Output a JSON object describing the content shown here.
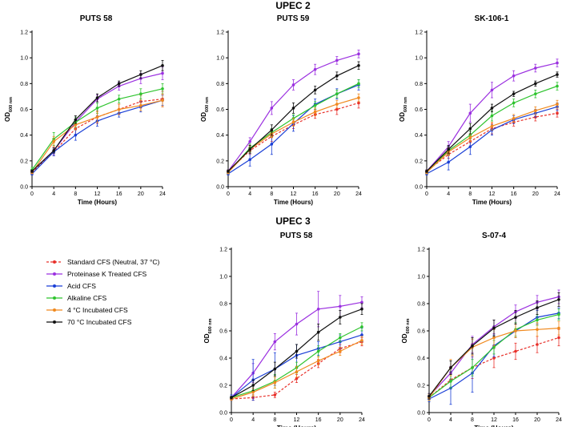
{
  "group_titles": [
    "UPEC 2",
    "UPEC 3"
  ],
  "legend": [
    {
      "name": "Standard CFS (Neutral, 37 °C)",
      "color": "#e8302a",
      "dash": true
    },
    {
      "name": "Proteinase K Treated CFS",
      "color": "#9b30e0",
      "dash": false
    },
    {
      "name": "Acid CFS",
      "color": "#1a3fd6",
      "dash": false
    },
    {
      "name": "Alkaline CFS",
      "color": "#2fc42f",
      "dash": false
    },
    {
      "name": "4 °C Incubated CFS",
      "color": "#f0891e",
      "dash": false
    },
    {
      "name": "70 °C Incubated CFS",
      "color": "#111111",
      "dash": false
    }
  ],
  "chart_data": [
    {
      "type": "line",
      "group": "UPEC 2",
      "title": "PUTS 58",
      "xlabel": "Time (Hours)",
      "ylabel_main": "OD",
      "ylabel_sub": "600 nm",
      "x": [
        0,
        4,
        8,
        12,
        16,
        20,
        24
      ],
      "xlim": [
        0,
        24
      ],
      "ylim": [
        0,
        1.2
      ],
      "xticks": [
        "0",
        "4",
        "8",
        "12",
        "16",
        "20",
        "24"
      ],
      "yticks": [
        "0.0",
        "0.2",
        "0.4",
        "0.6",
        "0.8",
        "1.0",
        "1.2"
      ],
      "series": [
        {
          "name": "Standard CFS (Neutral, 37 °C)",
          "values": [
            0.11,
            0.27,
            0.45,
            0.54,
            0.6,
            0.66,
            0.68
          ],
          "errors": [
            0.01,
            0.03,
            0.05,
            0.05,
            0.04,
            0.05,
            0.06
          ]
        },
        {
          "name": "Proteinase K Treated CFS",
          "values": [
            0.12,
            0.28,
            0.5,
            0.68,
            0.78,
            0.84,
            0.88
          ],
          "errors": [
            0.01,
            0.03,
            0.04,
            0.03,
            0.03,
            0.04,
            0.05
          ]
        },
        {
          "name": "Acid CFS",
          "values": [
            0.1,
            0.27,
            0.4,
            0.51,
            0.57,
            0.62,
            0.67
          ],
          "errors": [
            0.01,
            0.03,
            0.04,
            0.04,
            0.03,
            0.04,
            0.04
          ]
        },
        {
          "name": "Alkaline CFS",
          "values": [
            0.13,
            0.37,
            0.5,
            0.61,
            0.68,
            0.72,
            0.76
          ],
          "errors": [
            0.02,
            0.05,
            0.04,
            0.04,
            0.03,
            0.04,
            0.04
          ]
        },
        {
          "name": "4 °C Incubated CFS",
          "values": [
            0.11,
            0.35,
            0.48,
            0.54,
            0.6,
            0.63,
            0.67
          ],
          "errors": [
            0.01,
            0.04,
            0.04,
            0.04,
            0.04,
            0.04,
            0.05
          ]
        },
        {
          "name": "70 °C Incubated CFS",
          "values": [
            0.12,
            0.28,
            0.52,
            0.69,
            0.8,
            0.87,
            0.94
          ],
          "errors": [
            0.01,
            0.02,
            0.03,
            0.03,
            0.02,
            0.03,
            0.04
          ]
        }
      ]
    },
    {
      "type": "line",
      "group": "UPEC 2",
      "title": "PUTS 59",
      "xlabel": "Time (Hours)",
      "ylabel_main": "OD",
      "ylabel_sub": "600 nm",
      "x": [
        0,
        4,
        8,
        12,
        16,
        20,
        24
      ],
      "xlim": [
        0,
        24
      ],
      "ylim": [
        0,
        1.2
      ],
      "xticks": [
        "0",
        "4",
        "8",
        "12",
        "16",
        "20",
        "24"
      ],
      "yticks": [
        "0.0",
        "0.2",
        "0.4",
        "0.6",
        "0.8",
        "1.0",
        "1.2"
      ],
      "series": [
        {
          "name": "Standard CFS (Neutral, 37 °C)",
          "values": [
            0.12,
            0.28,
            0.39,
            0.48,
            0.56,
            0.6,
            0.65
          ],
          "errors": [
            0.01,
            0.03,
            0.04,
            0.03,
            0.03,
            0.04,
            0.04
          ]
        },
        {
          "name": "Proteinase K Treated CFS",
          "values": [
            0.12,
            0.35,
            0.61,
            0.79,
            0.91,
            0.98,
            1.03
          ],
          "errors": [
            0.01,
            0.03,
            0.05,
            0.04,
            0.04,
            0.03,
            0.03
          ]
        },
        {
          "name": "Acid CFS",
          "values": [
            0.1,
            0.21,
            0.33,
            0.49,
            0.64,
            0.72,
            0.79
          ],
          "errors": [
            0.01,
            0.05,
            0.08,
            0.06,
            0.04,
            0.04,
            0.04
          ]
        },
        {
          "name": "Alkaline CFS",
          "values": [
            0.11,
            0.3,
            0.42,
            0.53,
            0.63,
            0.72,
            0.8
          ],
          "errors": [
            0.01,
            0.03,
            0.03,
            0.03,
            0.03,
            0.03,
            0.03
          ]
        },
        {
          "name": "4 °C Incubated CFS",
          "values": [
            0.11,
            0.29,
            0.41,
            0.5,
            0.58,
            0.64,
            0.69
          ],
          "errors": [
            0.01,
            0.03,
            0.03,
            0.03,
            0.03,
            0.03,
            0.03
          ]
        },
        {
          "name": "70 °C Incubated CFS",
          "values": [
            0.12,
            0.29,
            0.44,
            0.61,
            0.75,
            0.86,
            0.94
          ],
          "errors": [
            0.01,
            0.03,
            0.04,
            0.04,
            0.03,
            0.03,
            0.03
          ]
        }
      ]
    },
    {
      "type": "line",
      "group": "UPEC 2",
      "title": "SK-106-1",
      "xlabel": "Time (Hours)",
      "ylabel_main": "OD",
      "ylabel_sub": "600 nm",
      "x": [
        0,
        4,
        8,
        12,
        16,
        20,
        24
      ],
      "xlim": [
        0,
        24
      ],
      "ylim": [
        0,
        1.2
      ],
      "xticks": [
        "0",
        "4",
        "8",
        "12",
        "16",
        "20",
        "24"
      ],
      "yticks": [
        "0.0",
        "0.2",
        "0.4",
        "0.6",
        "0.8",
        "1.0",
        "1.2"
      ],
      "series": [
        {
          "name": "Standard CFS (Neutral, 37 °C)",
          "values": [
            0.12,
            0.25,
            0.35,
            0.45,
            0.5,
            0.54,
            0.57
          ],
          "errors": [
            0.01,
            0.03,
            0.04,
            0.04,
            0.03,
            0.03,
            0.03
          ]
        },
        {
          "name": "Proteinase K Treated CFS",
          "values": [
            0.12,
            0.31,
            0.57,
            0.75,
            0.86,
            0.92,
            0.96
          ],
          "errors": [
            0.01,
            0.04,
            0.07,
            0.06,
            0.04,
            0.03,
            0.03
          ]
        },
        {
          "name": "Acid CFS",
          "values": [
            0.1,
            0.19,
            0.31,
            0.44,
            0.52,
            0.57,
            0.62
          ],
          "errors": [
            0.01,
            0.06,
            0.06,
            0.04,
            0.03,
            0.03,
            0.03
          ]
        },
        {
          "name": "Alkaline CFS",
          "values": [
            0.11,
            0.28,
            0.4,
            0.55,
            0.65,
            0.72,
            0.78
          ],
          "errors": [
            0.01,
            0.03,
            0.03,
            0.04,
            0.03,
            0.03,
            0.03
          ]
        },
        {
          "name": "4 °C Incubated CFS",
          "values": [
            0.11,
            0.27,
            0.38,
            0.47,
            0.53,
            0.59,
            0.64
          ],
          "errors": [
            0.01,
            0.03,
            0.03,
            0.03,
            0.03,
            0.03,
            0.03
          ]
        },
        {
          "name": "70 °C Incubated CFS",
          "values": [
            0.12,
            0.29,
            0.45,
            0.61,
            0.72,
            0.8,
            0.87
          ],
          "errors": [
            0.01,
            0.03,
            0.04,
            0.03,
            0.02,
            0.02,
            0.02
          ]
        }
      ]
    },
    {
      "type": "line",
      "group": "UPEC 3",
      "title": "PUTS 58",
      "xlabel": "Time (Hours)",
      "ylabel_main": "OD",
      "ylabel_sub": "600 nm",
      "x": [
        0,
        4,
        8,
        12,
        16,
        20,
        24
      ],
      "xlim": [
        0,
        24
      ],
      "ylim": [
        0,
        1.2
      ],
      "xticks": [
        "0",
        "4",
        "8",
        "12",
        "16",
        "20",
        "24"
      ],
      "yticks": [
        "0.0",
        "0.2",
        "0.4",
        "0.6",
        "0.8",
        "1.0",
        "1.2"
      ],
      "series": [
        {
          "name": "Standard CFS (Neutral, 37 °C)",
          "values": [
            0.1,
            0.11,
            0.13,
            0.25,
            0.36,
            0.47,
            0.52
          ],
          "errors": [
            0.01,
            0.02,
            0.02,
            0.03,
            0.03,
            0.03,
            0.03
          ]
        },
        {
          "name": "Proteinase K Treated CFS",
          "values": [
            0.11,
            0.29,
            0.52,
            0.65,
            0.76,
            0.78,
            0.81
          ],
          "errors": [
            0.02,
            0.07,
            0.06,
            0.08,
            0.13,
            0.08,
            0.04
          ]
        },
        {
          "name": "Acid CFS",
          "values": [
            0.11,
            0.24,
            0.32,
            0.42,
            0.47,
            0.52,
            0.57
          ],
          "errors": [
            0.02,
            0.15,
            0.12,
            0.08,
            0.05,
            0.05,
            0.05
          ]
        },
        {
          "name": "Alkaline CFS",
          "values": [
            0.11,
            0.16,
            0.23,
            0.33,
            0.45,
            0.55,
            0.63
          ],
          "errors": [
            0.01,
            0.04,
            0.05,
            0.04,
            0.04,
            0.03,
            0.03
          ]
        },
        {
          "name": "4 °C Incubated CFS",
          "values": [
            0.1,
            0.15,
            0.22,
            0.3,
            0.38,
            0.45,
            0.53
          ],
          "errors": [
            0.01,
            0.03,
            0.04,
            0.04,
            0.03,
            0.03,
            0.03
          ]
        },
        {
          "name": "70 °C Incubated CFS",
          "values": [
            0.11,
            0.2,
            0.32,
            0.45,
            0.59,
            0.7,
            0.76
          ],
          "errors": [
            0.01,
            0.04,
            0.05,
            0.05,
            0.06,
            0.05,
            0.04
          ]
        }
      ]
    },
    {
      "type": "line",
      "group": "UPEC 3",
      "title": "S-07-4",
      "xlabel": "Time (Hours)",
      "ylabel_main": "OD",
      "ylabel_sub": "600 nm",
      "x": [
        0,
        4,
        8,
        12,
        16,
        20,
        24
      ],
      "xlim": [
        0,
        24
      ],
      "ylim": [
        0,
        1.2
      ],
      "xticks": [
        "0",
        "4",
        "8",
        "12",
        "16",
        "20",
        "24"
      ],
      "yticks": [
        "0.0",
        "0.2",
        "0.4",
        "0.6",
        "0.8",
        "1.0",
        "1.2"
      ],
      "series": [
        {
          "name": "Standard CFS (Neutral, 37 °C)",
          "values": [
            0.11,
            0.24,
            0.33,
            0.4,
            0.45,
            0.5,
            0.55
          ],
          "errors": [
            0.02,
            0.06,
            0.08,
            0.07,
            0.06,
            0.06,
            0.06
          ]
        },
        {
          "name": "Proteinase K Treated CFS",
          "values": [
            0.12,
            0.29,
            0.5,
            0.63,
            0.74,
            0.81,
            0.85
          ],
          "errors": [
            0.02,
            0.05,
            0.06,
            0.05,
            0.05,
            0.05,
            0.05
          ]
        },
        {
          "name": "Acid CFS",
          "values": [
            0.1,
            0.18,
            0.29,
            0.49,
            0.6,
            0.7,
            0.73
          ],
          "errors": [
            0.02,
            0.12,
            0.14,
            0.08,
            0.05,
            0.05,
            0.04
          ]
        },
        {
          "name": "Alkaline CFS",
          "values": [
            0.11,
            0.23,
            0.33,
            0.48,
            0.61,
            0.68,
            0.72
          ],
          "errors": [
            0.02,
            0.05,
            0.06,
            0.05,
            0.05,
            0.04,
            0.04
          ]
        },
        {
          "name": "4 °C Incubated CFS",
          "values": [
            0.11,
            0.33,
            0.48,
            0.55,
            0.6,
            0.61,
            0.62
          ],
          "errors": [
            0.02,
            0.06,
            0.06,
            0.06,
            0.05,
            0.05,
            0.05
          ]
        },
        {
          "name": "70 °C Incubated CFS",
          "values": [
            0.12,
            0.33,
            0.49,
            0.62,
            0.7,
            0.77,
            0.83
          ],
          "errors": [
            0.02,
            0.05,
            0.06,
            0.06,
            0.05,
            0.05,
            0.05
          ]
        }
      ]
    }
  ]
}
